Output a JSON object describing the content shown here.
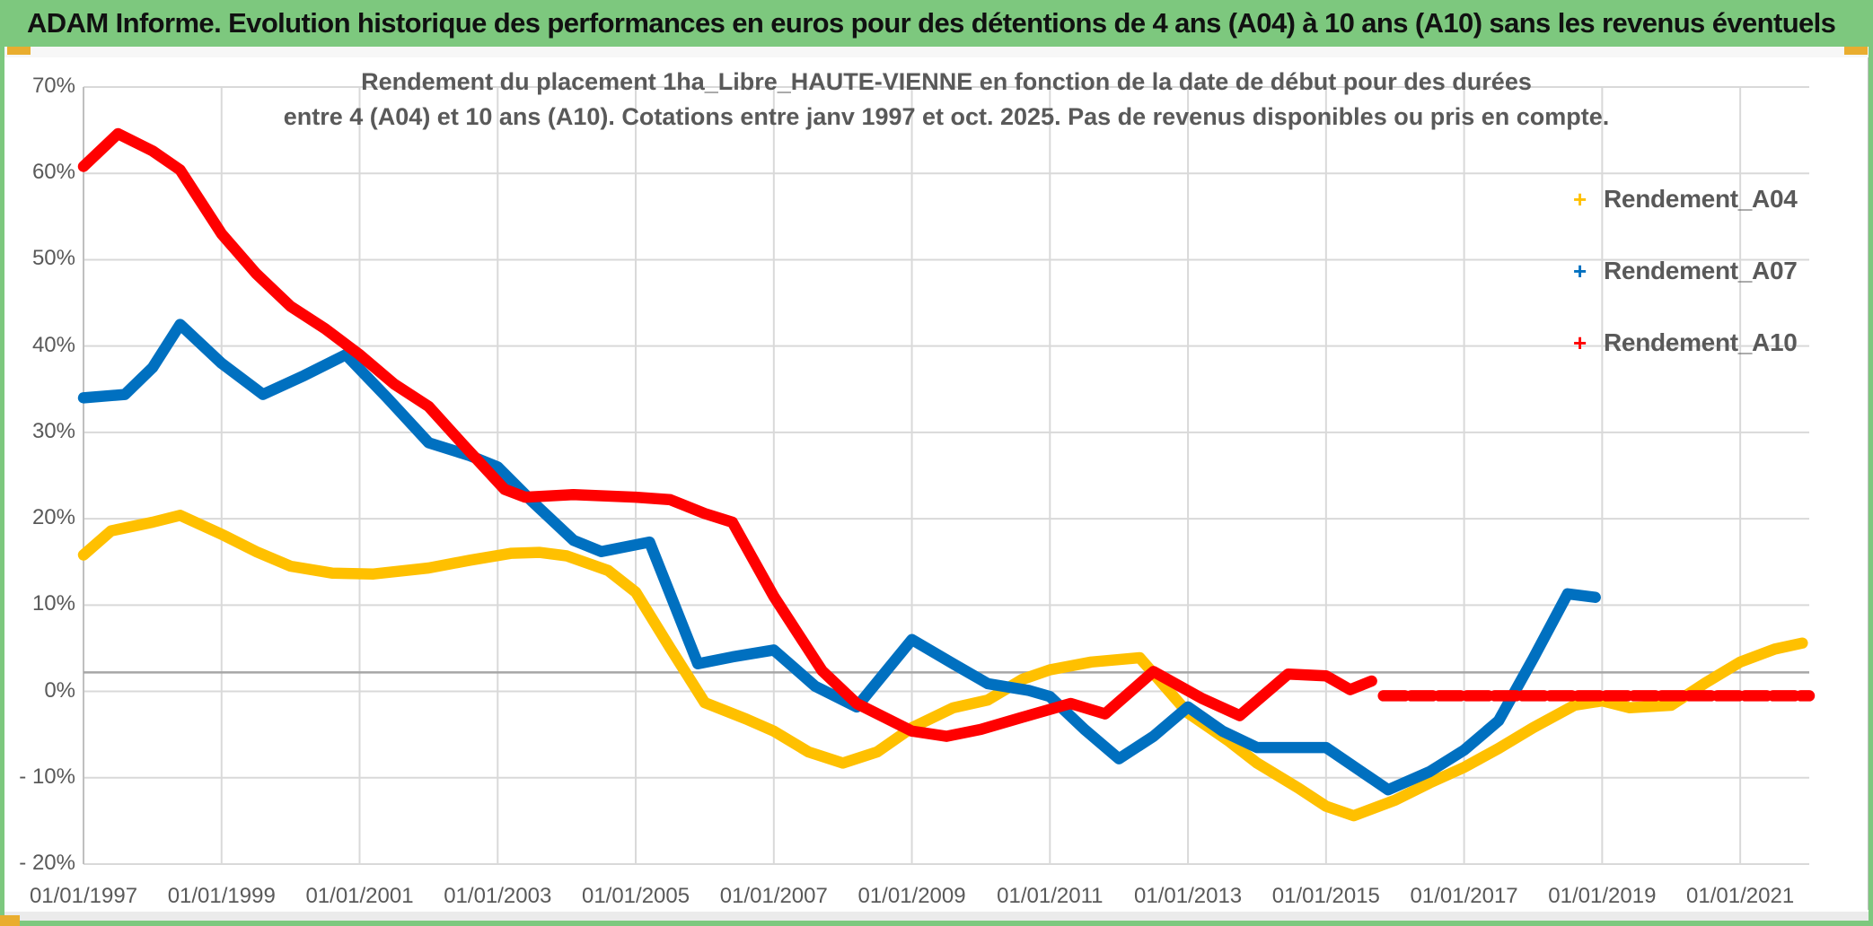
{
  "window": {
    "title_bar": "ADAM Informe. Evolution historique des performances en euros pour des détentions de 4 ans (A04) à 10 ans (A10) sans les revenus éventuels"
  },
  "colors": {
    "frame_green": "#7dc87e",
    "corner_orange": "#e9ad2f",
    "series_a04": "#FFC000",
    "series_a07": "#0070C0",
    "series_a10": "#FF0000",
    "axis_text": "#595959",
    "gridline": "#d9d9d9",
    "axis_line": "#bfbfbf",
    "reference_line": "#a6a6a6"
  },
  "chart_data": {
    "type": "line",
    "title_line1": "Rendement du placement 1ha_Libre_HAUTE-VIENNE en fonction de la date de début pour des durées",
    "title_line2": "entre 4 (A04) et 10 ans (A10). Cotations entre janv 1997 et oct. 2025. Pas de revenus disponibles ou pris en compte.",
    "x_range": [
      1997,
      2022
    ],
    "y_range": [
      70,
      -20
    ],
    "grid": true,
    "legend_position": "right",
    "y_ticks": [
      {
        "label": "70%",
        "value": 70
      },
      {
        "label": "60%",
        "value": 60
      },
      {
        "label": "50%",
        "value": 50
      },
      {
        "label": "40%",
        "value": 40
      },
      {
        "label": "30%",
        "value": 30
      },
      {
        "label": "20%",
        "value": 20
      },
      {
        "label": "10%",
        "value": 10
      },
      {
        "label": "0%",
        "value": 0
      },
      {
        "label": "- 10%",
        "value": -10
      },
      {
        "label": "- 20%",
        "value": -20
      }
    ],
    "x_ticks": [
      {
        "label": "01/01/1997",
        "year": 1997
      },
      {
        "label": "01/01/1999",
        "year": 1999
      },
      {
        "label": "01/01/2001",
        "year": 2001
      },
      {
        "label": "01/01/2003",
        "year": 2003
      },
      {
        "label": "01/01/2005",
        "year": 2005
      },
      {
        "label": "01/01/2007",
        "year": 2007
      },
      {
        "label": "01/01/2009",
        "year": 2009
      },
      {
        "label": "01/01/2011",
        "year": 2011
      },
      {
        "label": "01/01/2013",
        "year": 2013
      },
      {
        "label": "01/01/2015",
        "year": 2015
      },
      {
        "label": "01/01/2017",
        "year": 2017
      },
      {
        "label": "01/01/2019",
        "year": 2019
      },
      {
        "label": "01/01/2021",
        "year": 2021
      }
    ],
    "reference_line": {
      "value": 2.2
    },
    "series": [
      {
        "name": "Rendement_A04",
        "color": "#FFC000",
        "marker": "+",
        "segments": [
          {
            "dashed": false,
            "points": [
              [
                1997.0,
                15.8
              ],
              [
                1997.4,
                18.6
              ],
              [
                1998.0,
                19.6
              ],
              [
                1998.4,
                20.4
              ],
              [
                1999.0,
                18.2
              ],
              [
                1999.5,
                16.2
              ],
              [
                2000.0,
                14.5
              ],
              [
                2000.6,
                13.7
              ],
              [
                2001.2,
                13.6
              ],
              [
                2002.0,
                14.3
              ],
              [
                2002.6,
                15.2
              ],
              [
                2003.2,
                16.0
              ],
              [
                2003.6,
                16.1
              ],
              [
                2004.0,
                15.7
              ],
              [
                2004.6,
                14.0
              ],
              [
                2005.0,
                11.5
              ],
              [
                2005.5,
                5.0
              ],
              [
                2006.0,
                -1.3
              ],
              [
                2006.6,
                -3.2
              ],
              [
                2007.0,
                -4.6
              ],
              [
                2007.5,
                -7.0
              ],
              [
                2008.0,
                -8.3
              ],
              [
                2008.5,
                -7.0
              ],
              [
                2009.0,
                -4.2
              ],
              [
                2009.6,
                -1.9
              ],
              [
                2010.1,
                -1.0
              ],
              [
                2010.6,
                1.4
              ],
              [
                2011.0,
                2.5
              ],
              [
                2011.6,
                3.4
              ],
              [
                2012.3,
                3.9
              ],
              [
                2013.0,
                -2.5
              ],
              [
                2013.6,
                -5.8
              ],
              [
                2014.0,
                -8.3
              ],
              [
                2014.6,
                -11.2
              ],
              [
                2015.0,
                -13.3
              ],
              [
                2015.4,
                -14.4
              ],
              [
                2016.0,
                -12.6
              ],
              [
                2016.5,
                -10.6
              ],
              [
                2017.0,
                -8.8
              ],
              [
                2017.5,
                -6.6
              ],
              [
                2018.0,
                -4.2
              ],
              [
                2018.6,
                -1.6
              ],
              [
                2019.0,
                -1.1
              ],
              [
                2019.4,
                -1.9
              ],
              [
                2020.0,
                -1.6
              ],
              [
                2020.5,
                1.0
              ],
              [
                2021.0,
                3.4
              ],
              [
                2021.5,
                4.9
              ],
              [
                2021.9,
                5.6
              ]
            ]
          }
        ]
      },
      {
        "name": "Rendement_A07",
        "color": "#0070C0",
        "marker": "+",
        "segments": [
          {
            "dashed": false,
            "points": [
              [
                1997.0,
                34.0
              ],
              [
                1997.6,
                34.4
              ],
              [
                1998.0,
                37.5
              ],
              [
                1998.4,
                42.5
              ],
              [
                1999.0,
                38.0
              ],
              [
                1999.6,
                34.4
              ],
              [
                2000.2,
                36.6
              ],
              [
                2000.8,
                39.0
              ],
              [
                2001.4,
                34.0
              ],
              [
                2002.0,
                28.8
              ],
              [
                2002.6,
                27.3
              ],
              [
                2003.0,
                26.0
              ],
              [
                2003.5,
                22.0
              ],
              [
                2004.1,
                17.5
              ],
              [
                2004.5,
                16.2
              ],
              [
                2005.2,
                17.3
              ],
              [
                2005.9,
                3.2
              ],
              [
                2006.4,
                4.0
              ],
              [
                2007.0,
                4.8
              ],
              [
                2007.6,
                0.6
              ],
              [
                2008.2,
                -1.8
              ],
              [
                2009.0,
                6.0
              ],
              [
                2009.6,
                3.2
              ],
              [
                2010.1,
                0.9
              ],
              [
                2010.7,
                0.1
              ],
              [
                2011.0,
                -0.6
              ],
              [
                2011.5,
                -4.4
              ],
              [
                2012.0,
                -7.8
              ],
              [
                2012.5,
                -5.2
              ],
              [
                2013.0,
                -1.8
              ],
              [
                2013.5,
                -4.6
              ],
              [
                2014.0,
                -6.5
              ],
              [
                2015.0,
                -6.5
              ],
              [
                2015.9,
                -11.4
              ],
              [
                2016.5,
                -9.3
              ],
              [
                2017.0,
                -6.8
              ],
              [
                2017.5,
                -3.4
              ],
              [
                2018.0,
                3.8
              ],
              [
                2018.5,
                11.3
              ],
              [
                2018.9,
                10.9
              ]
            ]
          }
        ]
      },
      {
        "name": "Rendement_A10",
        "color": "#FF0000",
        "marker": "+",
        "segments": [
          {
            "dashed": false,
            "points": [
              [
                1997.0,
                60.8
              ],
              [
                1997.5,
                64.6
              ],
              [
                1998.0,
                62.6
              ],
              [
                1998.4,
                60.4
              ],
              [
                1999.0,
                53.0
              ],
              [
                1999.5,
                48.4
              ],
              [
                2000.0,
                44.6
              ],
              [
                2000.5,
                42.0
              ],
              [
                2001.0,
                39.0
              ],
              [
                2001.5,
                35.6
              ],
              [
                2002.0,
                33.0
              ],
              [
                2002.5,
                28.6
              ],
              [
                2003.1,
                23.4
              ],
              [
                2003.4,
                22.5
              ],
              [
                2004.1,
                22.8
              ],
              [
                2005.0,
                22.5
              ],
              [
                2005.5,
                22.2
              ],
              [
                2006.0,
                20.6
              ],
              [
                2006.4,
                19.6
              ],
              [
                2007.0,
                11.0
              ],
              [
                2007.7,
                2.4
              ],
              [
                2008.2,
                -1.4
              ],
              [
                2009.0,
                -4.6
              ],
              [
                2009.5,
                -5.2
              ],
              [
                2010.0,
                -4.4
              ],
              [
                2010.6,
                -3.0
              ],
              [
                2011.3,
                -1.4
              ],
              [
                2011.8,
                -2.6
              ],
              [
                2012.5,
                2.3
              ],
              [
                2013.2,
                -0.8
              ],
              [
                2013.75,
                -2.8
              ],
              [
                2014.45,
                2.0
              ],
              [
                2015.0,
                1.8
              ],
              [
                2015.35,
                0.2
              ],
              [
                2015.66,
                1.2
              ]
            ]
          },
          {
            "dashed": true,
            "points": [
              [
                2015.83,
                -0.5
              ],
              [
                2022.0,
                -0.5
              ]
            ]
          }
        ]
      }
    ],
    "legend": [
      {
        "label": "Rendement_A04",
        "color": "#FFC000",
        "marker": "+"
      },
      {
        "label": "Rendement_A07",
        "color": "#0070C0",
        "marker": "+"
      },
      {
        "label": "Rendement_A10",
        "color": "#FF0000",
        "marker": "+"
      }
    ]
  }
}
